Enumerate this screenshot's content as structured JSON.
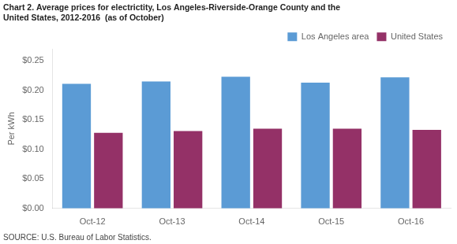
{
  "chart_data": {
    "type": "bar",
    "title": [
      "Chart 2. Average prices for electrictity, Los Angeles-Riverside-Orange County and the",
      "United States, 2012-2016  (as of October)"
    ],
    "ylabel": "Per kWh",
    "source": "SOURCE: U.S. Bureau of Labor Statistics.",
    "categories": [
      "Oct-12",
      "Oct-13",
      "Oct-14",
      "Oct-15",
      "Oct-16"
    ],
    "series": [
      {
        "name": "Los Angeles area",
        "color": "#5B9BD5",
        "values": [
          0.211,
          0.215,
          0.223,
          0.213,
          0.222
        ]
      },
      {
        "name": "United States",
        "color": "#943167",
        "values": [
          0.128,
          0.131,
          0.135,
          0.135,
          0.133
        ]
      }
    ],
    "ylim": [
      0,
      0.27
    ],
    "yticks": [
      {
        "value": 0.0,
        "label": "$0.00"
      },
      {
        "value": 0.05,
        "label": "$0.05"
      },
      {
        "value": 0.1,
        "label": "$0.10"
      },
      {
        "value": 0.15,
        "label": "$0.15"
      },
      {
        "value": 0.2,
        "label": "$0.20"
      },
      {
        "value": 0.25,
        "label": "$0.25"
      }
    ],
    "grid": false,
    "legend": "upper right"
  }
}
